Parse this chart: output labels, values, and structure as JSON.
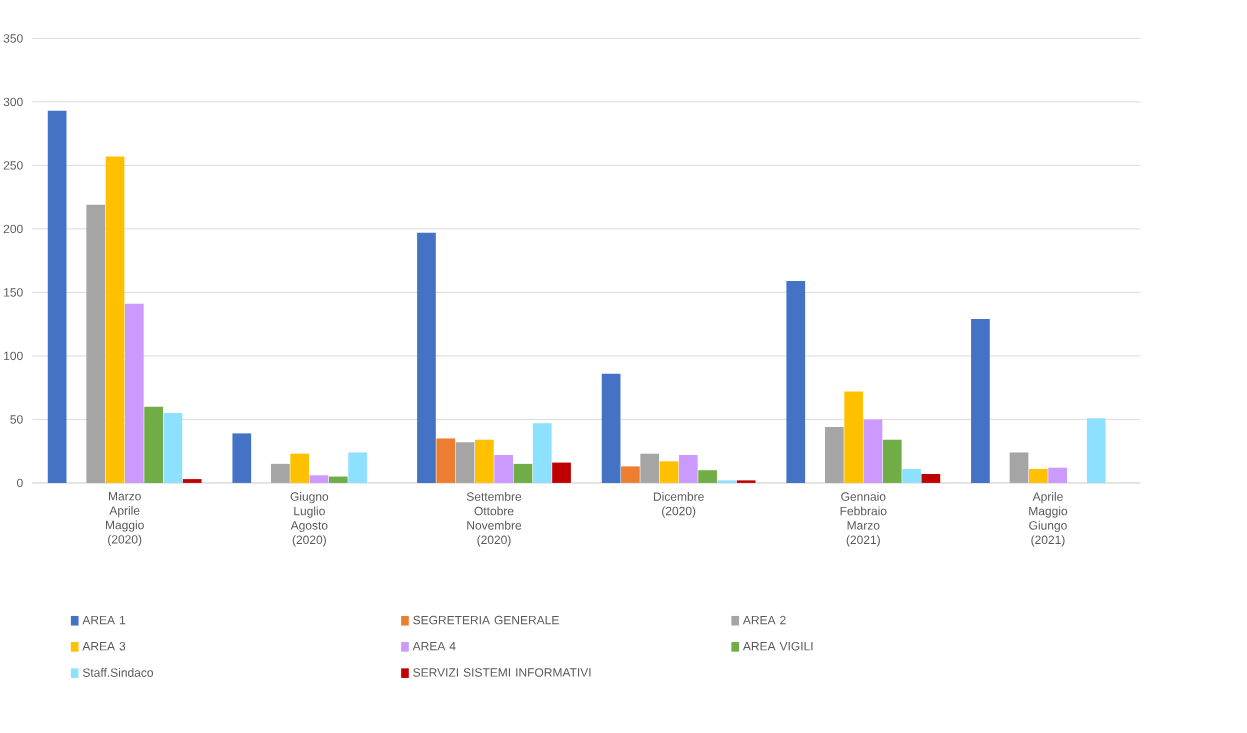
{
  "chart_data": {
    "type": "bar",
    "categories": [
      "Marzo Aprile Maggio (2020)",
      "Giugno Luglio Agosto (2020)",
      "Settembre Ottobre Novembre (2020)",
      "Dicembre (2020)",
      "Gennaio Febbraio Marzo (2021)",
      "Aprile Maggio Giungo (2021)"
    ],
    "series": [
      {
        "name": "AREA 1",
        "color": "#4472c4",
        "values": [
          293,
          39,
          197,
          86,
          159,
          129
        ]
      },
      {
        "name": "SEGRETERIA GENERALE",
        "color": "#ed7d31",
        "values": [
          null,
          null,
          35,
          13,
          null,
          null
        ]
      },
      {
        "name": "AREA 2",
        "color": "#a5a5a5",
        "values": [
          219,
          15,
          32,
          23,
          44,
          24
        ]
      },
      {
        "name": "AREA 3",
        "color": "#ffc000",
        "values": [
          257,
          23,
          34,
          17,
          72,
          11
        ]
      },
      {
        "name": "AREA 4",
        "color": "#cc99ff",
        "values": [
          141,
          6,
          22,
          22,
          50,
          12
        ]
      },
      {
        "name": "AREA VIGILI",
        "color": "#70ad47",
        "values": [
          60,
          5,
          15,
          10,
          34,
          null
        ]
      },
      {
        "name": "Staff.Sindaco",
        "color": "#8ee0ff",
        "values": [
          55,
          24,
          47,
          2,
          11,
          51
        ]
      },
      {
        "name": "SERVIZI SISTEMI INFORMATIVI",
        "color": "#c00000",
        "values": [
          3,
          null,
          16,
          2,
          7,
          null
        ]
      }
    ],
    "ylim": [
      0,
      350
    ],
    "yticks": [
      0,
      50,
      100,
      150,
      200,
      250,
      300,
      350
    ],
    "grid": "y",
    "legend": "bottom"
  }
}
